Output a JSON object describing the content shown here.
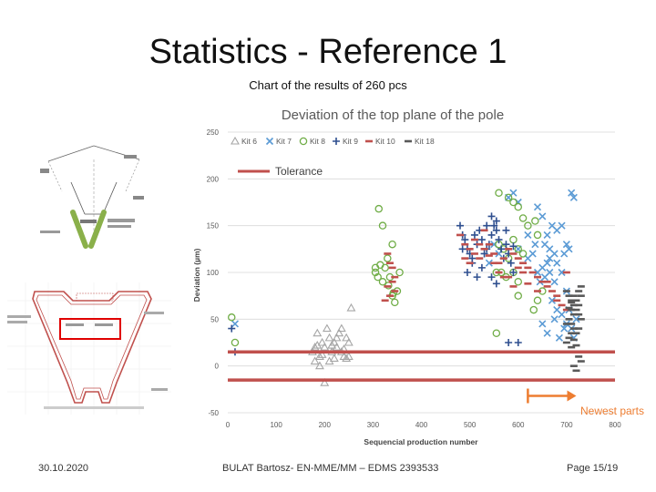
{
  "slide": {
    "title": "Statistics - Reference 1",
    "subtitle": "Chart of the results of 260 pcs",
    "footer_date": "30.10.2020",
    "footer_author": "BULAT Bartosz- EN-MME/MM – EDMS 2393533",
    "footer_page": "Page 15/19"
  },
  "colors": {
    "kit6": "#a6a6a6",
    "kit7": "#5b9bd5",
    "kit8": "#70ad47",
    "kit9": "#2f4f8f",
    "kit10": "#c0504d",
    "kit18": "#595959",
    "tolerance": "#c0504d",
    "newest_arrow": "#ed7d31",
    "highlight_box": "#e00000",
    "drawing_green": "#8ab04a"
  },
  "chart_data": {
    "type": "scatter",
    "title": "Deviation of the top plane of the pole",
    "xlabel": "Sequencial production number",
    "ylabel": "Deviation (µm)",
    "xlim": [
      0,
      800
    ],
    "ylim": [
      -50,
      250
    ],
    "x_ticks": [
      "0",
      "100",
      "200",
      "300",
      "400",
      "500",
      "600",
      "700",
      "800"
    ],
    "y_ticks": [
      "-50",
      "0",
      "50",
      "100",
      "150",
      "200",
      "250"
    ],
    "grid": true,
    "legend_position": "top",
    "tolerance": {
      "label": "Tolerance",
      "upper": 15,
      "lower": -15
    },
    "annotation": {
      "label": "Newest parts",
      "from_x": 620,
      "to_x": 720,
      "y": -32
    },
    "series": [
      {
        "name": "Kit 6",
        "marker": "triangle",
        "points": [
          [
            180,
            20
          ],
          [
            185,
            35
          ],
          [
            175,
            15
          ],
          [
            190,
            10
          ],
          [
            195,
            25
          ],
          [
            200,
            20
          ],
          [
            205,
            40
          ],
          [
            210,
            30
          ],
          [
            215,
            15
          ],
          [
            220,
            25
          ],
          [
            225,
            20
          ],
          [
            230,
            35
          ],
          [
            235,
            40
          ],
          [
            240,
            10
          ],
          [
            245,
            30
          ],
          [
            250,
            25
          ],
          [
            255,
            62
          ],
          [
            200,
            -18
          ],
          [
            210,
            5
          ],
          [
            180,
            5
          ],
          [
            190,
            0
          ],
          [
            245,
            8
          ],
          [
            235,
            15
          ],
          [
            225,
            30
          ],
          [
            185,
            22
          ],
          [
            195,
            12
          ],
          [
            250,
            10
          ],
          [
            215,
            22
          ],
          [
            220,
            8
          ],
          [
            240,
            18
          ]
        ]
      },
      {
        "name": "Kit 7",
        "marker": "x",
        "points": [
          [
            15,
            45
          ],
          [
            580,
            180
          ],
          [
            590,
            185
          ],
          [
            600,
            175
          ],
          [
            640,
            170
          ],
          [
            650,
            160
          ],
          [
            655,
            130
          ],
          [
            660,
            140
          ],
          [
            665,
            125
          ],
          [
            670,
            150
          ],
          [
            675,
            120
          ],
          [
            680,
            110
          ],
          [
            690,
            150
          ],
          [
            695,
            120
          ],
          [
            700,
            130
          ],
          [
            705,
            125
          ],
          [
            710,
            185
          ],
          [
            715,
            180
          ],
          [
            620,
            140
          ],
          [
            630,
            120
          ],
          [
            640,
            100
          ],
          [
            645,
            90
          ],
          [
            650,
            105
          ],
          [
            655,
            95
          ],
          [
            660,
            110
          ],
          [
            670,
            70
          ],
          [
            680,
            60
          ],
          [
            690,
            55
          ],
          [
            700,
            45
          ],
          [
            710,
            40
          ],
          [
            715,
            30
          ],
          [
            720,
            50
          ],
          [
            650,
            45
          ],
          [
            660,
            35
          ],
          [
            675,
            50
          ],
          [
            685,
            30
          ],
          [
            695,
            40
          ],
          [
            705,
            60
          ],
          [
            700,
            80
          ],
          [
            690,
            100
          ],
          [
            665,
            100
          ],
          [
            560,
            120
          ],
          [
            540,
            110
          ],
          [
            550,
            130
          ],
          [
            600,
            125
          ],
          [
            620,
            115
          ],
          [
            635,
            130
          ],
          [
            680,
            145
          ],
          [
            665,
            115
          ],
          [
            675,
            90
          ]
        ]
      },
      {
        "name": "Kit 8",
        "marker": "circle",
        "points": [
          [
            8,
            52
          ],
          [
            15,
            25
          ],
          [
            305,
            100
          ],
          [
            310,
            95
          ],
          [
            315,
            108
          ],
          [
            320,
            90
          ],
          [
            325,
            105
          ],
          [
            330,
            115
          ],
          [
            335,
            95
          ],
          [
            340,
            75
          ],
          [
            345,
            68
          ],
          [
            350,
            80
          ],
          [
            355,
            100
          ],
          [
            340,
            130
          ],
          [
            320,
            150
          ],
          [
            312,
            168
          ],
          [
            305,
            105
          ],
          [
            560,
            185
          ],
          [
            580,
            180
          ],
          [
            590,
            175
          ],
          [
            600,
            170
          ],
          [
            610,
            158
          ],
          [
            620,
            150
          ],
          [
            635,
            155
          ],
          [
            640,
            140
          ],
          [
            560,
            130
          ],
          [
            570,
            125
          ],
          [
            580,
            115
          ],
          [
            590,
            135
          ],
          [
            600,
            125
          ],
          [
            555,
            100
          ],
          [
            565,
            100
          ],
          [
            575,
            95
          ],
          [
            590,
            100
          ],
          [
            600,
            90
          ],
          [
            610,
            120
          ],
          [
            600,
            75
          ],
          [
            650,
            80
          ],
          [
            640,
            70
          ],
          [
            555,
            35
          ],
          [
            632,
            60
          ],
          [
            342,
            78
          ],
          [
            332,
            86
          ]
        ]
      },
      {
        "name": "Kit 9",
        "marker": "plus",
        "points": [
          [
            8,
            40
          ],
          [
            15,
            15
          ],
          [
            480,
            150
          ],
          [
            485,
            140
          ],
          [
            490,
            135
          ],
          [
            495,
            125
          ],
          [
            500,
            120
          ],
          [
            505,
            110
          ],
          [
            510,
            140
          ],
          [
            515,
            130
          ],
          [
            520,
            145
          ],
          [
            525,
            135
          ],
          [
            530,
            120
          ],
          [
            535,
            125
          ],
          [
            540,
            130
          ],
          [
            545,
            140
          ],
          [
            550,
            150
          ],
          [
            555,
            145
          ],
          [
            560,
            135
          ],
          [
            565,
            125
          ],
          [
            570,
            115
          ],
          [
            575,
            130
          ],
          [
            580,
            120
          ],
          [
            585,
            110
          ],
          [
            590,
            100
          ],
          [
            495,
            100
          ],
          [
            505,
            115
          ],
          [
            515,
            95
          ],
          [
            545,
            95
          ],
          [
            555,
            88
          ],
          [
            485,
            125
          ],
          [
            525,
            105
          ],
          [
            575,
            145
          ],
          [
            555,
            155
          ],
          [
            545,
            160
          ],
          [
            535,
            150
          ],
          [
            590,
            128
          ],
          [
            580,
            25
          ],
          [
            600,
            25
          ]
        ]
      },
      {
        "name": "Kit 10",
        "marker": "dash",
        "points": [
          [
            330,
            120
          ],
          [
            335,
            110
          ],
          [
            340,
            105
          ],
          [
            345,
            95
          ],
          [
            340,
            90
          ],
          [
            330,
            85
          ],
          [
            335,
            75
          ],
          [
            325,
            70
          ],
          [
            345,
            80
          ],
          [
            480,
            140
          ],
          [
            490,
            130
          ],
          [
            500,
            125
          ],
          [
            510,
            120
          ],
          [
            520,
            115
          ],
          [
            530,
            125
          ],
          [
            540,
            130
          ],
          [
            550,
            120
          ],
          [
            560,
            110
          ],
          [
            570,
            115
          ],
          [
            580,
            125
          ],
          [
            590,
            120
          ],
          [
            600,
            115
          ],
          [
            610,
            110
          ],
          [
            620,
            105
          ],
          [
            630,
            100
          ],
          [
            640,
            95
          ],
          [
            650,
            90
          ],
          [
            660,
            85
          ],
          [
            670,
            80
          ],
          [
            680,
            70
          ],
          [
            690,
            65
          ],
          [
            700,
            60
          ],
          [
            500,
            110
          ],
          [
            520,
            130
          ],
          [
            540,
            118
          ],
          [
            560,
            100
          ],
          [
            580,
            95
          ],
          [
            600,
            105
          ],
          [
            620,
            88
          ],
          [
            640,
            80
          ],
          [
            660,
            90
          ],
          [
            680,
            75
          ],
          [
            700,
            100
          ],
          [
            490,
            115
          ],
          [
            510,
            135
          ],
          [
            530,
            145
          ],
          [
            550,
            110
          ],
          [
            570,
            95
          ],
          [
            590,
            85
          ],
          [
            610,
            100
          ]
        ]
      },
      {
        "name": "Kit 18",
        "marker": "dash",
        "points": [
          [
            700,
            80
          ],
          [
            705,
            75
          ],
          [
            710,
            70
          ],
          [
            715,
            65
          ],
          [
            720,
            60
          ],
          [
            725,
            55
          ],
          [
            730,
            50
          ],
          [
            710,
            45
          ],
          [
            715,
            40
          ],
          [
            720,
            35
          ],
          [
            705,
            30
          ],
          [
            700,
            25
          ],
          [
            710,
            20
          ],
          [
            720,
            15
          ],
          [
            725,
            10
          ],
          [
            730,
            5
          ],
          [
            715,
            0
          ],
          [
            720,
            -5
          ],
          [
            710,
            60
          ],
          [
            715,
            55
          ],
          [
            725,
            65
          ],
          [
            720,
            70
          ],
          [
            705,
            50
          ],
          [
            700,
            45
          ],
          [
            730,
            75
          ],
          [
            725,
            40
          ],
          [
            715,
            28
          ],
          [
            710,
            35
          ],
          [
            720,
            22
          ],
          [
            705,
            62
          ],
          [
            725,
            80
          ],
          [
            730,
            85
          ],
          [
            715,
            75
          ],
          [
            720,
            55
          ],
          [
            710,
            68
          ]
        ]
      }
    ]
  }
}
